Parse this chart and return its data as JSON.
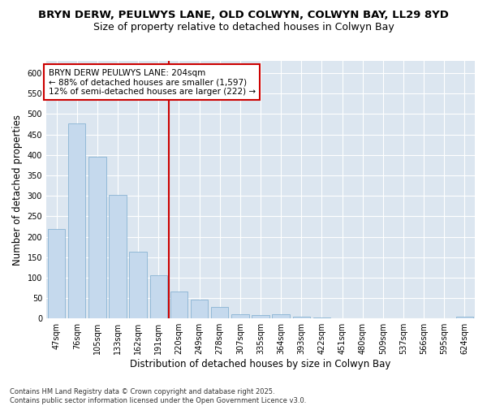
{
  "title_line1": "BRYN DERW, PEULWYS LANE, OLD COLWYN, COLWYN BAY, LL29 8YD",
  "title_line2": "Size of property relative to detached houses in Colwyn Bay",
  "xlabel": "Distribution of detached houses by size in Colwyn Bay",
  "ylabel": "Number of detached properties",
  "categories": [
    "47sqm",
    "76sqm",
    "105sqm",
    "133sqm",
    "162sqm",
    "191sqm",
    "220sqm",
    "249sqm",
    "278sqm",
    "307sqm",
    "335sqm",
    "364sqm",
    "393sqm",
    "422sqm",
    "451sqm",
    "480sqm",
    "509sqm",
    "537sqm",
    "566sqm",
    "595sqm",
    "624sqm"
  ],
  "values": [
    218,
    478,
    395,
    302,
    163,
    105,
    65,
    46,
    29,
    10,
    8,
    10,
    5,
    3,
    1,
    0,
    1,
    0,
    0,
    0,
    4
  ],
  "bar_color": "#c5d9ed",
  "bar_edge_color": "#7aaace",
  "redline_index": 6,
  "annotation_text": "BRYN DERW PEULWYS LANE: 204sqm\n← 88% of detached houses are smaller (1,597)\n12% of semi-detached houses are larger (222) →",
  "annotation_box_color": "#ffffff",
  "annotation_box_edge": "#cc0000",
  "redline_color": "#cc0000",
  "ylim": [
    0,
    630
  ],
  "yticks": [
    0,
    50,
    100,
    150,
    200,
    250,
    300,
    350,
    400,
    450,
    500,
    550,
    600
  ],
  "background_color": "#dce6f0",
  "footer_text": "Contains HM Land Registry data © Crown copyright and database right 2025.\nContains public sector information licensed under the Open Government Licence v3.0.",
  "title1_fontsize": 9.5,
  "title2_fontsize": 9,
  "axis_label_fontsize": 8.5,
  "tick_fontsize": 7,
  "annotation_fontsize": 7.5,
  "footer_fontsize": 6
}
